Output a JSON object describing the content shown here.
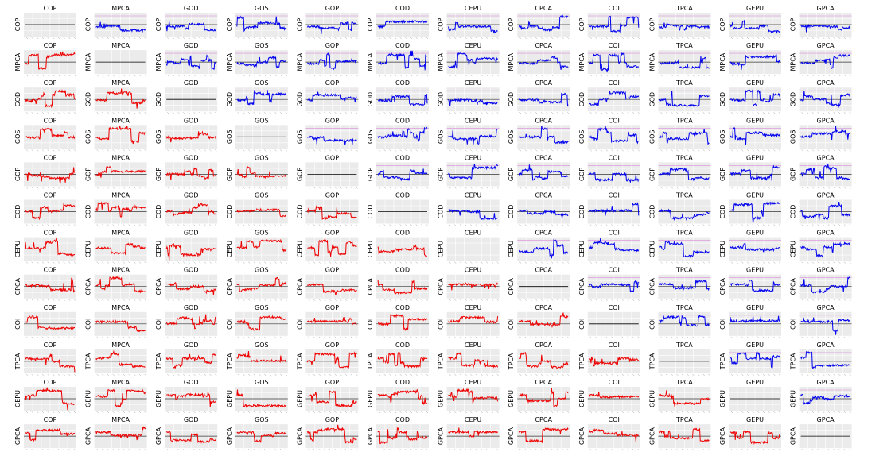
{
  "variables": [
    "COP",
    "MPCA",
    "GOD",
    "GOS",
    "GOP",
    "COD",
    "CEPU",
    "CPCA",
    "COI",
    "TPCA",
    "GEPU",
    "GPCA"
  ],
  "colors": {
    "upper": "#0000ee",
    "lower": "#ee0000",
    "diagonal": "#000000",
    "panel_bg": "#ebebeb",
    "grid": "#ffffff",
    "zero_line": "#333333",
    "upper_band": "#d98cd9"
  },
  "chart_data": {
    "type": "line",
    "layout": "12x12 matrix of small line plots",
    "row_variables": [
      "COP",
      "MPCA",
      "GOD",
      "GOS",
      "GOP",
      "COD",
      "CEPU",
      "CPCA",
      "COI",
      "TPCA",
      "GEPU",
      "GPCA"
    ],
    "column_variables": [
      "COP",
      "MPCA",
      "GOD",
      "GOS",
      "GOP",
      "COD",
      "CEPU",
      "CPCA",
      "COI",
      "TPCA",
      "GEPU",
      "GPCA"
    ],
    "upper_triangle_series_color": "blue",
    "lower_triangle_series_color": "red",
    "diagonal": "flat line at zero",
    "ylim": [
      -1,
      1
    ],
    "grid": true
  }
}
